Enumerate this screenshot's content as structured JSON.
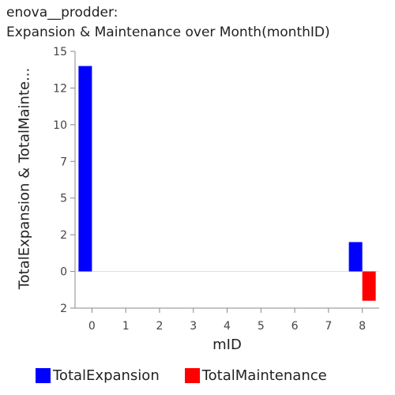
{
  "title": {
    "line1": "enova__prodder:",
    "line2": "Expansion & Maintenance over Month(monthID)"
  },
  "chart_data": {
    "type": "bar",
    "xlabel": "mID",
    "ylabel": "TotalExpansion & TotalMainte...",
    "categories": [
      "0",
      "1",
      "2",
      "3",
      "4",
      "5",
      "6",
      "7",
      "8"
    ],
    "y_tick_labels": [
      "15",
      "12",
      "10",
      "7",
      "5",
      "2",
      "0",
      "2"
    ],
    "y_tick_values": [
      15,
      12.5,
      10,
      7.5,
      5,
      2.5,
      0,
      -2.5
    ],
    "ylim": [
      -2.5,
      15
    ],
    "grid": false,
    "legend_position": "bottom",
    "series": [
      {
        "name": "TotalExpansion",
        "color": "#0000ff",
        "values": [
          14,
          0,
          0,
          0,
          0,
          0,
          0,
          0,
          2
        ]
      },
      {
        "name": "TotalMaintenance",
        "color": "#ff0000",
        "values": [
          0,
          0,
          0,
          0,
          0,
          0,
          0,
          0,
          -2
        ]
      }
    ]
  }
}
